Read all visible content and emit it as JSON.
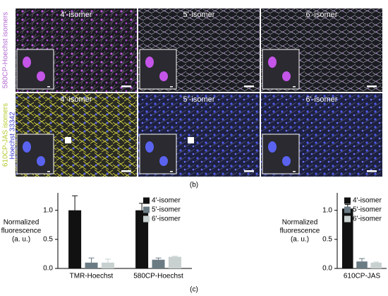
{
  "images": {
    "rows": [
      {
        "label": "580CP-Hoechst isomers",
        "panels": [
          "4'-isomer",
          "5'-isomer",
          "6'-isomer"
        ]
      },
      {
        "label": "610CP-JAS isomers",
        "panels": [
          "4'-isomer",
          "5'-isomer",
          "6'-isomer"
        ]
      }
    ],
    "stain_label": "Hoechst 33342",
    "caption": "(b)"
  },
  "caption": "(c)",
  "chart_data": [
    {
      "type": "bar",
      "ylabel": [
        "Normalized",
        "fluorescence",
        "(a. u.)"
      ],
      "categories": [
        "TMR-Hoechst",
        "580CP-Hoechst"
      ],
      "series": [
        {
          "name": "4'-isomer",
          "color": "#111111",
          "values": [
            1.0,
            1.0
          ],
          "errors": [
            0.25,
            0.12
          ]
        },
        {
          "name": "5'-isomer",
          "color": "#6b7b84",
          "values": [
            0.1,
            0.15
          ],
          "errors": [
            0.08,
            0.03
          ]
        },
        {
          "name": "6'-isomer",
          "color": "#c8d0d0",
          "values": [
            0.1,
            0.2
          ],
          "errors": [
            0.06,
            0.01
          ]
        }
      ],
      "ylim": [
        0,
        1.3
      ],
      "yticks": [
        {
          "value": 0,
          "label": "0.0"
        },
        0.5,
        {
          "value": 1,
          "label": "1.0"
        }
      ]
    },
    {
      "type": "bar",
      "ylabel": [
        "Normalized",
        "fluorescence",
        "(a. u.)"
      ],
      "categories": [
        "610CP-JAS"
      ],
      "series": [
        {
          "name": "4'-isomer",
          "color": "#111111",
          "values": [
            1.03
          ],
          "errors": [
            0.07
          ]
        },
        {
          "name": "5'-isomer",
          "color": "#6b7b84",
          "values": [
            0.12
          ],
          "errors": [
            0.05
          ]
        },
        {
          "name": "6'-isomer",
          "color": "#c8d0d0",
          "values": [
            0.1
          ],
          "errors": [
            0.01
          ]
        }
      ],
      "ylim": [
        0,
        1.3
      ],
      "yticks": [
        {
          "value": 0,
          "label": "0.0"
        },
        0.5,
        {
          "value": 1,
          "label": "1.0"
        }
      ]
    }
  ]
}
